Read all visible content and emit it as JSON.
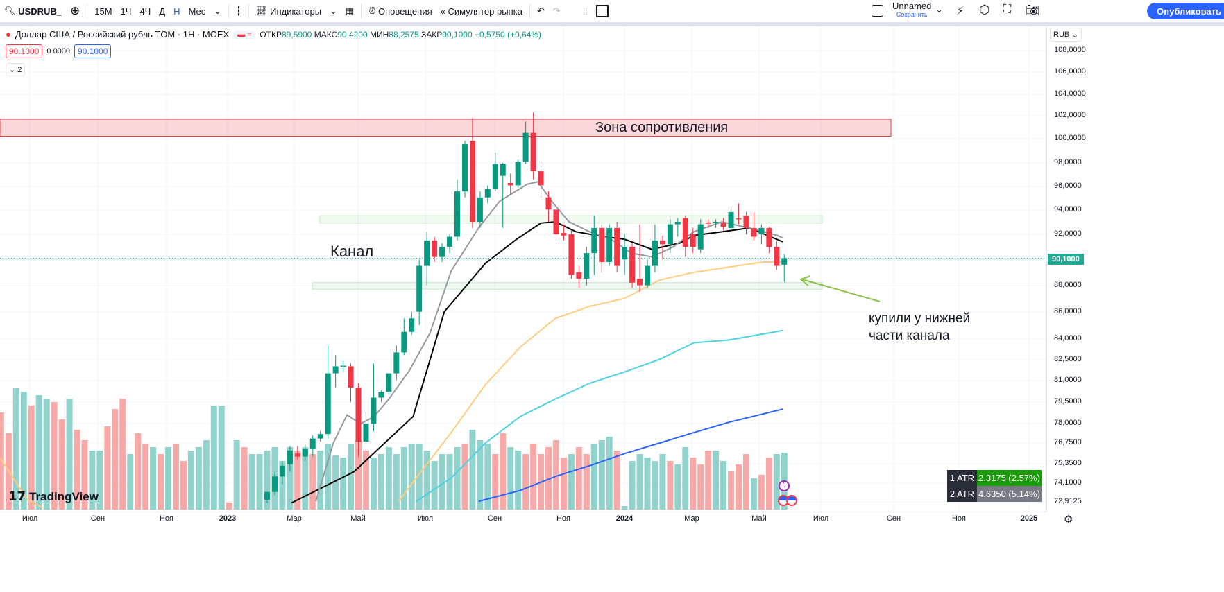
{
  "toolbar": {
    "symbol": "USDRUB_",
    "intervals": [
      "15М",
      "1Ч",
      "4Ч",
      "Д",
      "Н",
      "Мес"
    ],
    "active_interval": "Н",
    "indicators": "Индикаторы",
    "alerts": "Оповещения",
    "replay": "Симулятор рынка",
    "layout_name": "Unnamed",
    "save": "Сохранить",
    "publish": "Опубликовать"
  },
  "legend": {
    "title": "Доллар США / Российский рубль TOM · 1Н · MOEX",
    "open_label": "ОТКР",
    "open": "89,5900",
    "high_label": "МАКС",
    "high": "90,4200",
    "low_label": "МИН",
    "low": "88,2575",
    "close_label": "ЗАКР",
    "close": "90,1000",
    "change": "+0,5750 (+0,64%)",
    "bid": "90.1000",
    "spread": "0.0000",
    "ask": "90.1000",
    "indicators_count": "2"
  },
  "price_axis": {
    "currency": "RUB",
    "current_price": "90,1000",
    "labels": [
      "108,0000",
      "106,0000",
      "104,0000",
      "102,0000",
      "100,0000",
      "98,0000",
      "96,0000",
      "94,0000",
      "92,0000",
      "88,0000",
      "86,0000",
      "84,0000",
      "82,5000",
      "81,0000",
      "79,5000",
      "78,0000",
      "76,7500",
      "75,3500",
      "74,1000",
      "72,9125"
    ],
    "scale": "log"
  },
  "time_axis": {
    "labels": [
      "Июл",
      "Сен",
      "Ноя",
      "2023",
      "Мар",
      "Май",
      "Июл",
      "Сен",
      "Ноя",
      "2024",
      "Мар",
      "Май",
      "Июл",
      "Сен",
      "Ноя",
      "2025"
    ]
  },
  "annotations": {
    "resistance": "Зона сопротивления",
    "channel": "Канал",
    "note_line1": "купили у нижней",
    "note_line2": "части канала",
    "resistance_zone": [
      100.2,
      101.7
    ],
    "channel_upper": [
      92.9,
      93.5
    ],
    "channel_lower": [
      87.7,
      88.2
    ]
  },
  "atr": [
    {
      "label": "1 ATR",
      "value": "2.3175 (2.57%)",
      "color": "#1b9a0a"
    },
    {
      "label": "2 ATR",
      "value": "4.6350 (5.14%)",
      "color": "#787b86"
    }
  ],
  "branding": {
    "logo": "TradingView"
  },
  "colors": {
    "up": "#089981",
    "down": "#f23645",
    "vol_up": "#92d2cc",
    "vol_down": "#f7a9a7",
    "ma_fast": "#9598a1",
    "ma_mid": "#000000",
    "ma_50": "#ffcc80",
    "ma_100": "#4dd0e1",
    "ma_200": "#2962ff",
    "price_line": "#22ab94"
  },
  "chart_data": {
    "type": "candlestick",
    "x_unit": "week index",
    "candles": [
      [
        73.0,
        73.3,
        72.8,
        73.5
      ],
      [
        73.5,
        74.8,
        73.3,
        74.5
      ],
      [
        74.5,
        75.5,
        74.0,
        75.2
      ],
      [
        75.3,
        76.5,
        74.8,
        76.2
      ],
      [
        76.0,
        76.5,
        75.6,
        75.8
      ],
      [
        75.8,
        76.6,
        75.5,
        76.3
      ],
      [
        76.3,
        77.2,
        75.8,
        77.0
      ],
      [
        77.0,
        77.5,
        76.8,
        77.3
      ],
      [
        77.3,
        83.5,
        77.0,
        81.5
      ],
      [
        81.5,
        82.8,
        80.5,
        82.0
      ],
      [
        82.0,
        82.4,
        81.6,
        82.05
      ],
      [
        82.0,
        82.2,
        79.5,
        80.5
      ],
      [
        80.5,
        80.8,
        75.8,
        76.8
      ],
      [
        76.8,
        78.8,
        75.5,
        78.0
      ],
      [
        78.0,
        82.2,
        77.5,
        79.8
      ],
      [
        79.8,
        80.3,
        79.5,
        80.2
      ],
      [
        80.2,
        81.5,
        80.0,
        81.5
      ],
      [
        81.5,
        83.5,
        81.0,
        83.0
      ],
      [
        83.0,
        85.5,
        82.8,
        84.5
      ],
      [
        84.5,
        86.0,
        84.3,
        85.5
      ],
      [
        86.0,
        90.0,
        85.0,
        89.5
      ],
      [
        89.5,
        92.2,
        88.0,
        91.5
      ],
      [
        91.5,
        91.8,
        89.8,
        90.2
      ],
      [
        90.2,
        91.3,
        89.8,
        91.0
      ],
      [
        91.0,
        92.0,
        90.5,
        91.8
      ],
      [
        91.8,
        96.5,
        91.5,
        95.5
      ],
      [
        95.5,
        99.8,
        95.0,
        99.5
      ],
      [
        99.8,
        101.8,
        92.5,
        93.0
      ],
      [
        93.0,
        95.5,
        92.5,
        95.0
      ],
      [
        95.0,
        96.0,
        94.5,
        95.7
      ],
      [
        95.7,
        98.8,
        95.5,
        97.8
      ],
      [
        96.8,
        97.9,
        92.5,
        97.8
      ],
      [
        96.2,
        97.0,
        95.2,
        96.0
      ],
      [
        96.0,
        98.2,
        95.8,
        98.0
      ],
      [
        98.0,
        101.5,
        97.8,
        100.5
      ],
      [
        100.5,
        102.3,
        96.5,
        97.2
      ],
      [
        97.2,
        98.0,
        95.0,
        96.0
      ],
      [
        95.0,
        95.5,
        93.0,
        94.0
      ],
      [
        94.0,
        94.3,
        91.5,
        92.0
      ],
      [
        92.1,
        92.8,
        91.5,
        91.9
      ],
      [
        92.0,
        92.3,
        88.5,
        88.8
      ],
      [
        89.0,
        89.5,
        87.8,
        88.5
      ],
      [
        88.5,
        91.0,
        88.0,
        90.5
      ],
      [
        90.5,
        93.5,
        88.8,
        92.5
      ],
      [
        92.5,
        92.8,
        89.0,
        89.8
      ],
      [
        89.8,
        92.8,
        89.5,
        92.5
      ],
      [
        92.5,
        93.0,
        89.0,
        89.5
      ],
      [
        90.0,
        92.0,
        88.8,
        91.0
      ],
      [
        91.0,
        91.3,
        87.8,
        88.2
      ],
      [
        88.5,
        92.8,
        87.5,
        88.0
      ],
      [
        88.0,
        90.0,
        87.8,
        89.5
      ],
      [
        89.5,
        92.8,
        89.0,
        91.5
      ],
      [
        91.5,
        91.9,
        90.0,
        91.2
      ],
      [
        91.2,
        93.2,
        90.5,
        92.8
      ],
      [
        92.8,
        93.3,
        91.8,
        93.0
      ],
      [
        93.3,
        93.5,
        90.2,
        91.0
      ],
      [
        92.0,
        92.5,
        90.5,
        91.0
      ],
      [
        90.8,
        93.2,
        90.5,
        92.8
      ],
      [
        92.95,
        93.2,
        92.5,
        92.85
      ],
      [
        92.9,
        93.2,
        92.5,
        93.0
      ],
      [
        92.9,
        93.3,
        92.3,
        92.6
      ],
      [
        92.5,
        94.3,
        92.0,
        93.8
      ],
      [
        93.3,
        94.5,
        92.8,
        93.2
      ],
      [
        93.5,
        93.8,
        92.0,
        92.5
      ],
      [
        92.5,
        93.8,
        91.5,
        91.8
      ],
      [
        92.0,
        92.8,
        91.2,
        92.5
      ],
      [
        92.5,
        92.6,
        90.5,
        91.0
      ],
      [
        91.0,
        91.5,
        89.2,
        89.5
      ],
      [
        89.59,
        90.42,
        88.2575,
        90.1
      ]
    ],
    "moving_averages": {
      "fast": [
        [
          6.4,
          72.9
        ],
        [
          8.7,
          76.7
        ],
        [
          10.5,
          78.6
        ],
        [
          12.3,
          78.0
        ],
        [
          14.1,
          78.5
        ],
        [
          16,
          79.7
        ],
        [
          18.7,
          81.7
        ],
        [
          21.4,
          84.4
        ],
        [
          24.2,
          89.1
        ],
        [
          27.8,
          92.5
        ],
        [
          30.6,
          94.7
        ],
        [
          34.2,
          96.1
        ],
        [
          35.6,
          96.3
        ],
        [
          37.4,
          94.7
        ],
        [
          39.7,
          93.0
        ],
        [
          42.4,
          92.2
        ],
        [
          45.2,
          91.6
        ],
        [
          47.9,
          90.5
        ],
        [
          50.6,
          90.2
        ],
        [
          53.4,
          91.0
        ],
        [
          56.1,
          92.2
        ],
        [
          59.8,
          93.0
        ],
        [
          63.4,
          92.5
        ],
        [
          67.1,
          91.9
        ],
        [
          67.8,
          91.7
        ]
      ],
      "mid": [
        [
          3.2,
          72.8
        ],
        [
          11.4,
          74.8
        ],
        [
          19.2,
          78.5
        ],
        [
          23.3,
          86.0
        ],
        [
          28.7,
          89.7
        ],
        [
          32.8,
          91.6
        ],
        [
          36,
          92.9
        ],
        [
          37.9,
          93.0
        ],
        [
          40.6,
          92.2
        ],
        [
          44.3,
          91.8
        ],
        [
          47,
          91.6
        ],
        [
          50.6,
          90.8
        ],
        [
          54.3,
          91.3
        ],
        [
          56.1,
          91.9
        ],
        [
          59.8,
          92.2
        ],
        [
          63.4,
          92.5
        ],
        [
          67.8,
          91.4
        ]
      ],
      "ma50": [
        [
          17.3,
          72.9
        ],
        [
          19.6,
          74.4
        ],
        [
          24.2,
          77.4
        ],
        [
          28.7,
          80.7
        ],
        [
          33.3,
          83.4
        ],
        [
          37.9,
          85.5
        ],
        [
          42.4,
          86.4
        ],
        [
          47,
          87.0
        ],
        [
          51.6,
          88.4
        ],
        [
          56.1,
          89.0
        ],
        [
          60.7,
          89.4
        ],
        [
          65.2,
          89.8
        ],
        [
          67.8,
          89.8
        ]
      ],
      "ma50_early": [
        [
          -35.1,
          75.7
        ],
        [
          -31.5,
          73.0
        ],
        [
          -29.5,
          72.5
        ]
      ],
      "ma100": [
        [
          19.6,
          72.9
        ],
        [
          24.2,
          74.4
        ],
        [
          28.7,
          76.7
        ],
        [
          33.3,
          78.5
        ],
        [
          37.9,
          79.7
        ],
        [
          42.4,
          80.8
        ],
        [
          47,
          81.6
        ],
        [
          51.6,
          82.5
        ],
        [
          56.1,
          83.7
        ],
        [
          60.7,
          83.9
        ],
        [
          67.8,
          84.6
        ]
      ],
      "ma200": [
        [
          27.8,
          72.9
        ],
        [
          33.3,
          73.6
        ],
        [
          37.9,
          74.5
        ],
        [
          42.4,
          75.2
        ],
        [
          47,
          76.0
        ],
        [
          51.6,
          76.7
        ],
        [
          56.1,
          77.4
        ],
        [
          60.7,
          78.1
        ],
        [
          67.8,
          79.0
        ]
      ]
    },
    "volume": [
      140,
      110,
      175,
      170,
      150,
      165,
      160,
      155,
      130,
      160,
      115,
      100,
      85,
      85,
      120,
      145,
      160,
      80,
      110,
      95,
      90,
      80,
      90,
      95,
      70,
      85,
      90,
      100,
      150,
      150,
      10,
      100,
      90,
      80,
      80,
      85,
      90,
      70,
      90,
      85,
      90,
      80,
      85,
      95,
      78,
      75,
      95,
      100,
      85,
      75,
      80,
      90,
      80,
      90,
      95,
      95,
      85,
      70,
      80,
      80,
      90,
      95,
      115,
      100,
      95,
      80,
      110,
      90,
      85,
      80,
      95,
      80,
      90,
      100,
      75,
      80,
      90,
      80,
      95,
      100,
      105,
      85,
      5,
      70,
      80,
      75,
      70,
      80,
      70,
      65,
      90,
      75,
      65,
      85,
      85,
      70,
      55,
      65,
      80,
      45,
      50,
      75,
      80,
      82
    ],
    "volume_up": "rruuruurrurruurrrurrururruuuuururuuuuuururuuuuurruuuuuuuuuuuuruuurruurrrrrrurruuuruuuuuuruvrrruurrrurru"
  }
}
